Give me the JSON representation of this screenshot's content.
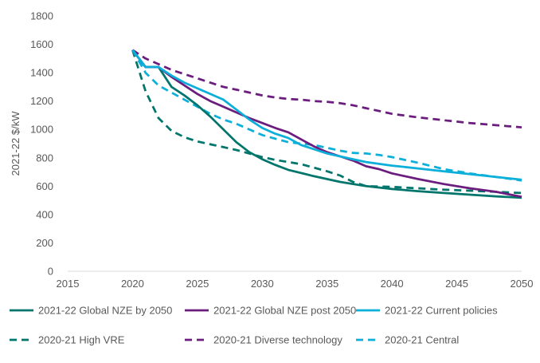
{
  "chart_data": {
    "type": "line",
    "title": "",
    "xlabel": "",
    "ylabel": "2021-22 $/kW",
    "xlim": [
      2015,
      2050
    ],
    "ylim": [
      0,
      1800
    ],
    "x_ticks": [
      2015,
      2020,
      2025,
      2030,
      2035,
      2040,
      2045,
      2050
    ],
    "y_ticks": [
      0,
      200,
      400,
      600,
      800,
      1000,
      1200,
      1400,
      1600,
      1800
    ],
    "grid": false,
    "legend_position": "bottom",
    "series": [
      {
        "name": "2021-22 Global NZE by 2050",
        "color": "#00756B",
        "dash": "solid",
        "x": [
          2020,
          2021,
          2022,
          2023,
          2024,
          2025,
          2026,
          2027,
          2028,
          2029,
          2030,
          2031,
          2032,
          2034,
          2036,
          2038,
          2040,
          2042,
          2044,
          2046,
          2048,
          2050
        ],
        "y": [
          1560,
          1440,
          1440,
          1300,
          1240,
          1170,
          1090,
          1000,
          910,
          840,
          790,
          750,
          715,
          670,
          630,
          600,
          580,
          565,
          552,
          540,
          528,
          518
        ]
      },
      {
        "name": "2021-22 Global NZE post 2050",
        "color": "#6B1D7E",
        "dash": "solid",
        "x": [
          2020,
          2021,
          2022,
          2023,
          2024,
          2025,
          2026,
          2027,
          2028,
          2029,
          2030,
          2031,
          2032,
          2033,
          2034,
          2035,
          2036,
          2037,
          2038,
          2039,
          2040,
          2042,
          2044,
          2046,
          2048,
          2050
        ],
        "y": [
          1560,
          1440,
          1440,
          1370,
          1310,
          1250,
          1200,
          1160,
          1120,
          1080,
          1045,
          1010,
          980,
          930,
          880,
          840,
          810,
          780,
          740,
          720,
          690,
          650,
          615,
          585,
          560,
          525
        ]
      },
      {
        "name": "2021-22 Current policies",
        "color": "#0CAFD9",
        "dash": "solid",
        "x": [
          2020,
          2021,
          2022,
          2023,
          2024,
          2025,
          2026,
          2027,
          2028,
          2029,
          2030,
          2031,
          2032,
          2033,
          2034,
          2035,
          2036,
          2037,
          2038,
          2040,
          2042,
          2044,
          2046,
          2048,
          2050
        ],
        "y": [
          1560,
          1440,
          1440,
          1380,
          1330,
          1290,
          1250,
          1210,
          1140,
          1070,
          1010,
          970,
          940,
          890,
          860,
          830,
          810,
          790,
          770,
          745,
          725,
          705,
          685,
          665,
          645
        ]
      },
      {
        "name": "2020-21 High VRE",
        "color": "#00756B",
        "dash": "dashed",
        "x": [
          2020,
          2021,
          2022,
          2023,
          2024,
          2025,
          2026,
          2027,
          2028,
          2029,
          2030,
          2031,
          2032,
          2033,
          2034,
          2035,
          2036,
          2037,
          2038,
          2040,
          2042,
          2044,
          2046,
          2048,
          2050
        ],
        "y": [
          1560,
          1270,
          1080,
          990,
          945,
          915,
          895,
          875,
          855,
          830,
          805,
          785,
          770,
          755,
          730,
          705,
          675,
          630,
          600,
          595,
          585,
          575,
          568,
          560,
          552
        ]
      },
      {
        "name": "2020-21 Diverse technology",
        "color": "#6B1D7E",
        "dash": "dashed",
        "x": [
          2020,
          2021,
          2022,
          2023,
          2024,
          2025,
          2026,
          2027,
          2028,
          2029,
          2030,
          2031,
          2032,
          2033,
          2034,
          2035,
          2036,
          2037,
          2038,
          2039,
          2040,
          2042,
          2044,
          2046,
          2048,
          2050
        ],
        "y": [
          1560,
          1500,
          1460,
          1420,
          1390,
          1360,
          1330,
          1300,
          1280,
          1260,
          1240,
          1225,
          1215,
          1210,
          1200,
          1195,
          1185,
          1170,
          1150,
          1130,
          1110,
          1085,
          1065,
          1045,
          1030,
          1015
        ]
      },
      {
        "name": "2020-21 Central",
        "color": "#0CAFD9",
        "dash": "dashed",
        "x": [
          2020,
          2021,
          2022,
          2023,
          2024,
          2025,
          2026,
          2027,
          2028,
          2029,
          2030,
          2031,
          2032,
          2033,
          2034,
          2035,
          2036,
          2037,
          2038,
          2039,
          2040,
          2042,
          2044,
          2046,
          2048,
          2050
        ],
        "y": [
          1560,
          1400,
          1310,
          1260,
          1210,
          1160,
          1110,
          1070,
          1040,
          1000,
          960,
          935,
          910,
          900,
          890,
          870,
          850,
          835,
          830,
          820,
          805,
          765,
          720,
          690,
          665,
          640
        ]
      }
    ]
  }
}
